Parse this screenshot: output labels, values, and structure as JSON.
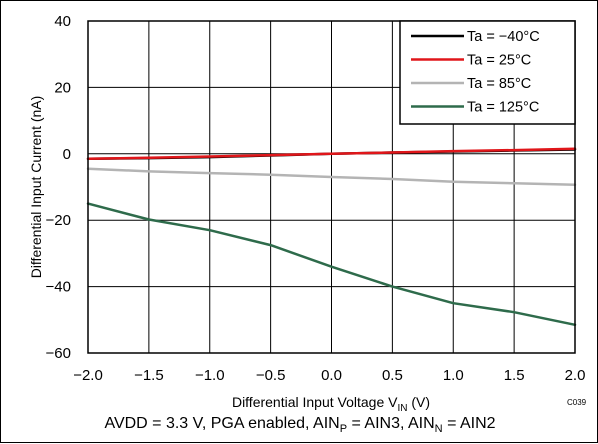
{
  "chart_data": {
    "type": "line",
    "xlabel_main": "Differential  Input Voltage V",
    "xlabel_sub": "IN",
    "xlabel_unit": " (V)",
    "ylabel": "Differential Input Current (nA)",
    "xlim": [
      -2.0,
      2.0
    ],
    "ylim": [
      -60,
      40
    ],
    "x_ticks": [
      -2.0,
      -1.5,
      -1.0,
      -0.5,
      0.0,
      0.5,
      1.0,
      1.5,
      2.0
    ],
    "x_tick_labels": [
      "−2.0",
      "−1.5",
      "−1.0",
      "−0.5",
      "0.0",
      "0.5",
      "1.0",
      "1.5",
      "2.0"
    ],
    "y_ticks": [
      -60,
      -40,
      -20,
      0,
      20,
      40
    ],
    "y_tick_labels": [
      "−60",
      "−40",
      "−20",
      "0",
      "20",
      "40"
    ],
    "grid": true,
    "legend_position": "top-right",
    "figure_code": "C039",
    "series": [
      {
        "name": "Ta = −40°C",
        "color": "#000000",
        "x": [
          -2.0,
          -1.5,
          -1.0,
          -0.5,
          0.0,
          0.5,
          1.0,
          1.5,
          2.0
        ],
        "y": [
          -1.5,
          -1.3,
          -1.0,
          -0.5,
          0.0,
          0.4,
          0.7,
          1.0,
          1.3
        ]
      },
      {
        "name": "Ta = 25°C",
        "color": "#e0161a",
        "x": [
          -2.0,
          -1.5,
          -1.0,
          -0.5,
          0.0,
          0.5,
          1.0,
          1.5,
          2.0
        ],
        "y": [
          -1.5,
          -1.2,
          -0.8,
          -0.4,
          0.0,
          0.4,
          0.8,
          1.1,
          1.5
        ]
      },
      {
        "name": "Ta = 85°C",
        "color": "#b4b4b4",
        "x": [
          -2.0,
          -1.5,
          -1.0,
          -0.5,
          0.0,
          0.5,
          1.0,
          1.5,
          2.0
        ],
        "y": [
          -4.5,
          -5.3,
          -5.8,
          -6.3,
          -7.0,
          -7.6,
          -8.4,
          -8.9,
          -9.3
        ]
      },
      {
        "name": "Ta = 125°C",
        "color": "#2e6b4b",
        "x": [
          -2.0,
          -1.5,
          -1.0,
          -0.5,
          0.0,
          0.5,
          1.0,
          1.5,
          2.0
        ],
        "y": [
          -15.0,
          -19.8,
          -23.0,
          -27.5,
          -34.0,
          -40.0,
          -45.0,
          -47.7,
          -51.5
        ]
      }
    ]
  },
  "caption": {
    "part1": "AVDD = 3.3 V, PGA enabled, AIN",
    "sub1": "P",
    "part2": " = AIN3, AIN",
    "sub2": "N",
    "part3": " = AIN2"
  }
}
